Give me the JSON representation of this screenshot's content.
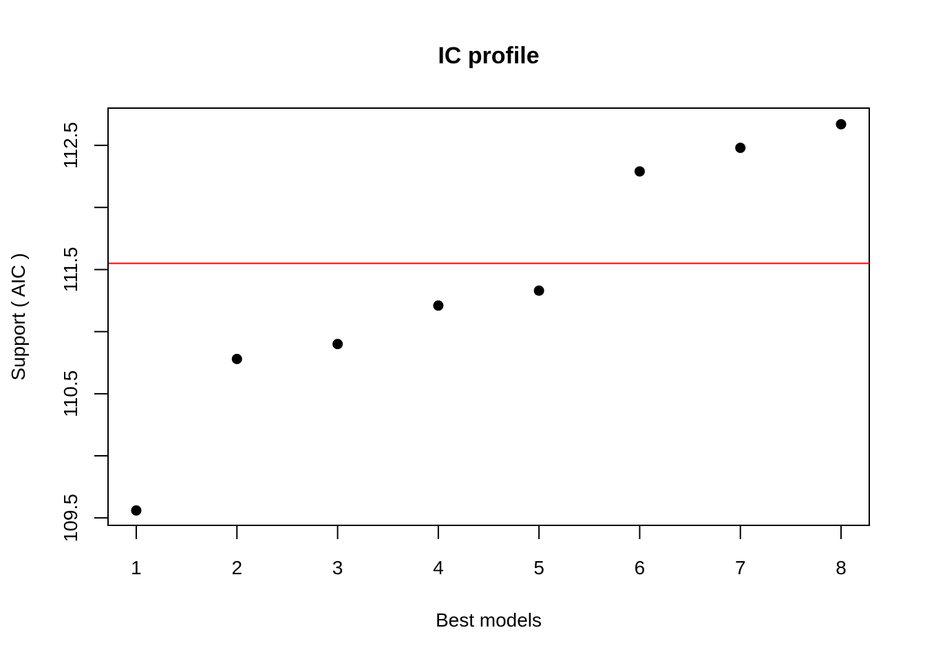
{
  "chart_data": {
    "type": "scatter",
    "title": "IC profile",
    "xlabel": "Best models",
    "ylabel": "Support ( AIC )",
    "x": [
      1,
      2,
      3,
      4,
      5,
      6,
      7,
      8
    ],
    "y": [
      109.56,
      110.78,
      110.9,
      111.21,
      111.33,
      112.29,
      112.48,
      112.67
    ],
    "xlim": [
      0.72,
      8.28
    ],
    "ylim": [
      109.44,
      112.8
    ],
    "x_ticks": [
      1,
      2,
      3,
      4,
      5,
      6,
      7,
      8
    ],
    "y_ticks": [
      109.5,
      110.0,
      110.5,
      111.0,
      111.5,
      112.0,
      112.5
    ],
    "y_tick_labels": [
      "109.5",
      "",
      "110.5",
      "",
      "111.5",
      "",
      "112.5"
    ],
    "reference_line": {
      "orientation": "horizontal",
      "y": 111.55,
      "color": "#ff0000"
    },
    "point_color": "#000000",
    "grid": false
  }
}
